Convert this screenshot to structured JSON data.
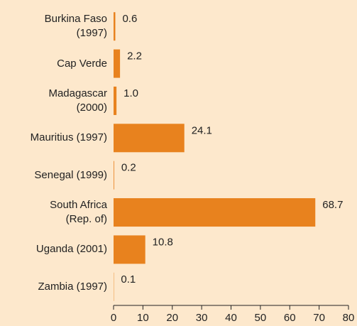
{
  "chart_data": {
    "type": "bar",
    "orientation": "horizontal",
    "categories": [
      "Burkina Faso\n(1997)",
      "Cap Verde",
      "Madagascar\n(2000)",
      "Mauritius (1997)",
      "Senegal (1999)",
      "South Africa\n(Rep. of)",
      "Uganda (2001)",
      "Zambia (1997)"
    ],
    "values": [
      0.6,
      2.2,
      1.0,
      24.1,
      0.2,
      68.7,
      10.8,
      0.1
    ],
    "value_labels": [
      "0.6",
      "2.2",
      "1.0",
      "24.1",
      "0.2",
      "68.7",
      "10.8",
      "0.1"
    ],
    "color": "#e8821e",
    "xlim": [
      0,
      80
    ],
    "xticks": [
      0,
      10,
      20,
      30,
      40,
      50,
      60,
      70,
      80
    ]
  }
}
